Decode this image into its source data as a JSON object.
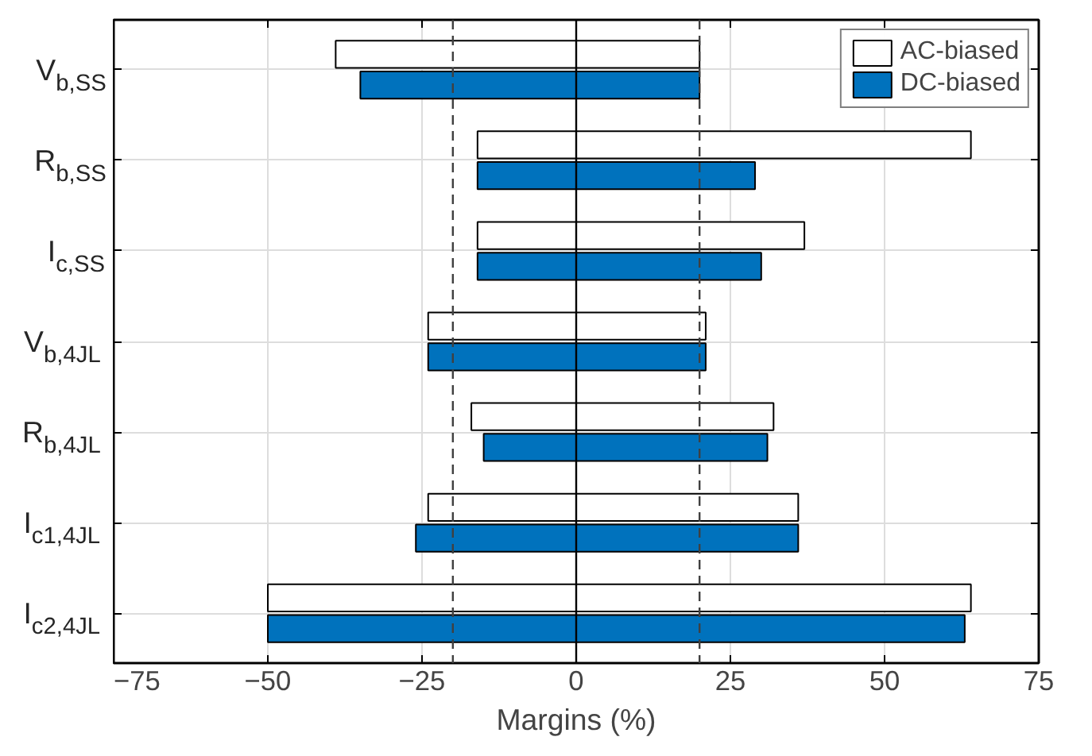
{
  "chart_data": {
    "type": "bar",
    "orientation": "horizontal",
    "xlabel": "Margins (%)",
    "categories": [
      "V$_{b,SS}$",
      "R$_{b,SS}$",
      "I$_{c,SS}$",
      "V$_{b,4JL}$",
      "R$_{b,4JL}$",
      "I$_{c1,4JL}$",
      "I$_{c2,4JL}$"
    ],
    "series": [
      {
        "name": "AC-biased",
        "color": "#ffffff",
        "base": [
          -39,
          -16,
          -16,
          -24,
          -17,
          -24,
          -50
        ],
        "values": [
          59,
          80,
          53,
          45,
          49,
          60,
          114
        ]
      },
      {
        "name": "DC-biased",
        "color": "#0072bd",
        "base": [
          -35,
          -16,
          -16,
          -24,
          -15,
          -26,
          -50
        ],
        "values": [
          55,
          45,
          46,
          45,
          46,
          62,
          113
        ]
      }
    ],
    "xlim": [
      -75,
      75
    ],
    "xticks": [
      -75,
      -50,
      -25,
      0,
      25,
      50,
      75
    ],
    "ref_lines": [
      {
        "axis": "x",
        "value": -20,
        "color": "#404040",
        "line_style": "dashed"
      },
      {
        "axis": "x",
        "value": 20,
        "color": "#404040",
        "line_style": "dashed"
      },
      {
        "axis": "x",
        "value": 0,
        "color": "#000000",
        "line_style": "solid"
      }
    ],
    "grid": true,
    "legend": "top right"
  }
}
